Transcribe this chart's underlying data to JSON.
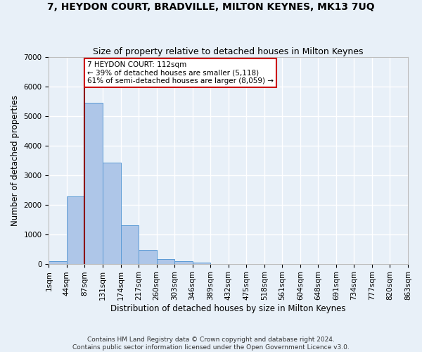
{
  "title": "7, HEYDON COURT, BRADVILLE, MILTON KEYNES, MK13 7UQ",
  "subtitle": "Size of property relative to detached houses in Milton Keynes",
  "xlabel": "Distribution of detached houses by size in Milton Keynes",
  "ylabel": "Number of detached properties",
  "footer_line1": "Contains HM Land Registry data © Crown copyright and database right 2024.",
  "footer_line2": "Contains public sector information licensed under the Open Government Licence v3.0.",
  "bar_values": [
    80,
    2280,
    5450,
    3430,
    1310,
    470,
    155,
    80,
    45,
    0,
    0,
    0,
    0,
    0,
    0,
    0,
    0,
    0,
    0
  ],
  "bin_labels": [
    "1sqm",
    "44sqm",
    "87sqm",
    "131sqm",
    "174sqm",
    "217sqm",
    "260sqm",
    "303sqm",
    "346sqm",
    "389sqm",
    "432sqm",
    "475sqm",
    "518sqm",
    "561sqm",
    "604sqm",
    "648sqm",
    "691sqm",
    "734sqm",
    "777sqm",
    "820sqm",
    "863sqm"
  ],
  "bar_color": "#aec6e8",
  "bar_edge_color": "#5b9bd5",
  "vline_x": 2,
  "vline_color": "#8b0000",
  "annotation_text": "7 HEYDON COURT: 112sqm\n← 39% of detached houses are smaller (5,118)\n61% of semi-detached houses are larger (8,059) →",
  "annotation_box_color": "#ffffff",
  "annotation_box_edge_color": "#cc0000",
  "ylim": [
    0,
    7000
  ],
  "yticks": [
    0,
    1000,
    2000,
    3000,
    4000,
    5000,
    6000,
    7000
  ],
  "bg_color": "#e8f0f8",
  "grid_color": "#ffffff",
  "title_fontsize": 10,
  "subtitle_fontsize": 9,
  "axis_label_fontsize": 8.5,
  "tick_fontsize": 7.5,
  "footer_fontsize": 6.5
}
